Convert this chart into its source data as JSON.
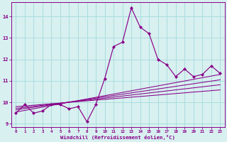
{
  "xlabel": "Windchill (Refroidissement éolien,°C)",
  "x_values": [
    0,
    1,
    2,
    3,
    4,
    5,
    6,
    7,
    8,
    9,
    10,
    11,
    12,
    13,
    14,
    15,
    16,
    17,
    18,
    19,
    20,
    21,
    22,
    23
  ],
  "y_main": [
    9.5,
    9.9,
    9.5,
    9.6,
    9.9,
    9.9,
    9.7,
    9.8,
    9.1,
    9.9,
    11.1,
    12.6,
    12.8,
    14.4,
    13.5,
    13.2,
    12.0,
    11.75,
    11.2,
    11.55,
    11.2,
    11.3,
    11.7,
    11.35
  ],
  "regression_lines": [
    {
      "start_x": 0,
      "start_y": 9.55,
      "end_x": 23,
      "end_y": 11.3
    },
    {
      "start_x": 0,
      "start_y": 9.65,
      "end_x": 23,
      "end_y": 11.05
    },
    {
      "start_x": 0,
      "start_y": 9.72,
      "end_x": 23,
      "end_y": 10.82
    },
    {
      "start_x": 0,
      "start_y": 9.8,
      "end_x": 23,
      "end_y": 10.58
    }
  ],
  "line_color": "#880088",
  "marker_color": "#880088",
  "bg_color": "#d8f0f0",
  "grid_color": "#aadddd",
  "ylim": [
    8.85,
    14.65
  ],
  "yticks": [
    9,
    10,
    11,
    12,
    13,
    14
  ],
  "xlim": [
    -0.5,
    23.5
  ],
  "xticks": [
    0,
    1,
    2,
    3,
    4,
    5,
    6,
    7,
    8,
    9,
    10,
    11,
    12,
    13,
    14,
    15,
    16,
    17,
    18,
    19,
    20,
    21,
    22,
    23
  ]
}
